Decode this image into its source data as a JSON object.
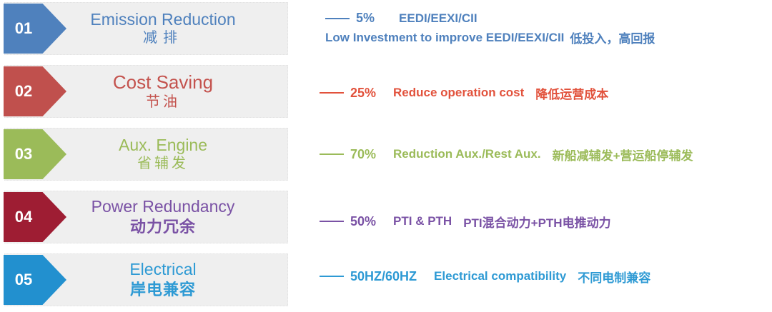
{
  "page": {
    "background": "#ffffff",
    "bar_background": "#efefef"
  },
  "items": [
    {
      "num": "01",
      "title_en": "Emission Reduction",
      "title_zh": "减排",
      "arrow_color": "#4f81bd",
      "title_color": "#4f81bd",
      "text_color": "#4f81bd",
      "pct": "5%",
      "desc_en": "EEDI/EEXI/CII",
      "desc_zh": "",
      "line2_en": "Low Investment to improve EEDI/EEXI/CII",
      "line2_zh": "低投入，高回报"
    },
    {
      "num": "02",
      "title_en": "Cost Saving",
      "title_zh": "节油",
      "arrow_color": "#c0504d",
      "title_color": "#c4534e",
      "text_color": "#e2523c",
      "pct": "25%",
      "desc_en": "Reduce operation cost",
      "desc_zh": "降低运营成本"
    },
    {
      "num": "03",
      "title_en": "Aux. Engine",
      "title_zh": "省辅发",
      "arrow_color": "#9bbb59",
      "title_color": "#9bbb59",
      "text_color": "#9bbb59",
      "pct": "70%",
      "desc_en": "Reduction Aux./Rest Aux.",
      "desc_zh": "新船减辅发+营运船停辅发"
    },
    {
      "num": "04",
      "title_en": "Power Redundancy",
      "title_zh": "动力冗余",
      "arrow_color": "#9e1d33",
      "title_color": "#7a52a5",
      "text_color": "#7a52a5",
      "pct": "50%",
      "desc_en": "PTI & PTH",
      "desc_zh": "PTI混合动力+PTH电推动力"
    },
    {
      "num": "05",
      "title_en": "Electrical",
      "title_zh": "岸电兼容",
      "arrow_color": "#2290cf",
      "title_color": "#2e9ad4",
      "text_color": "#2e9ad4",
      "pct": "50HZ/60HZ",
      "desc_en": "Electrical compatibility",
      "desc_zh": "不同电制兼容"
    }
  ]
}
